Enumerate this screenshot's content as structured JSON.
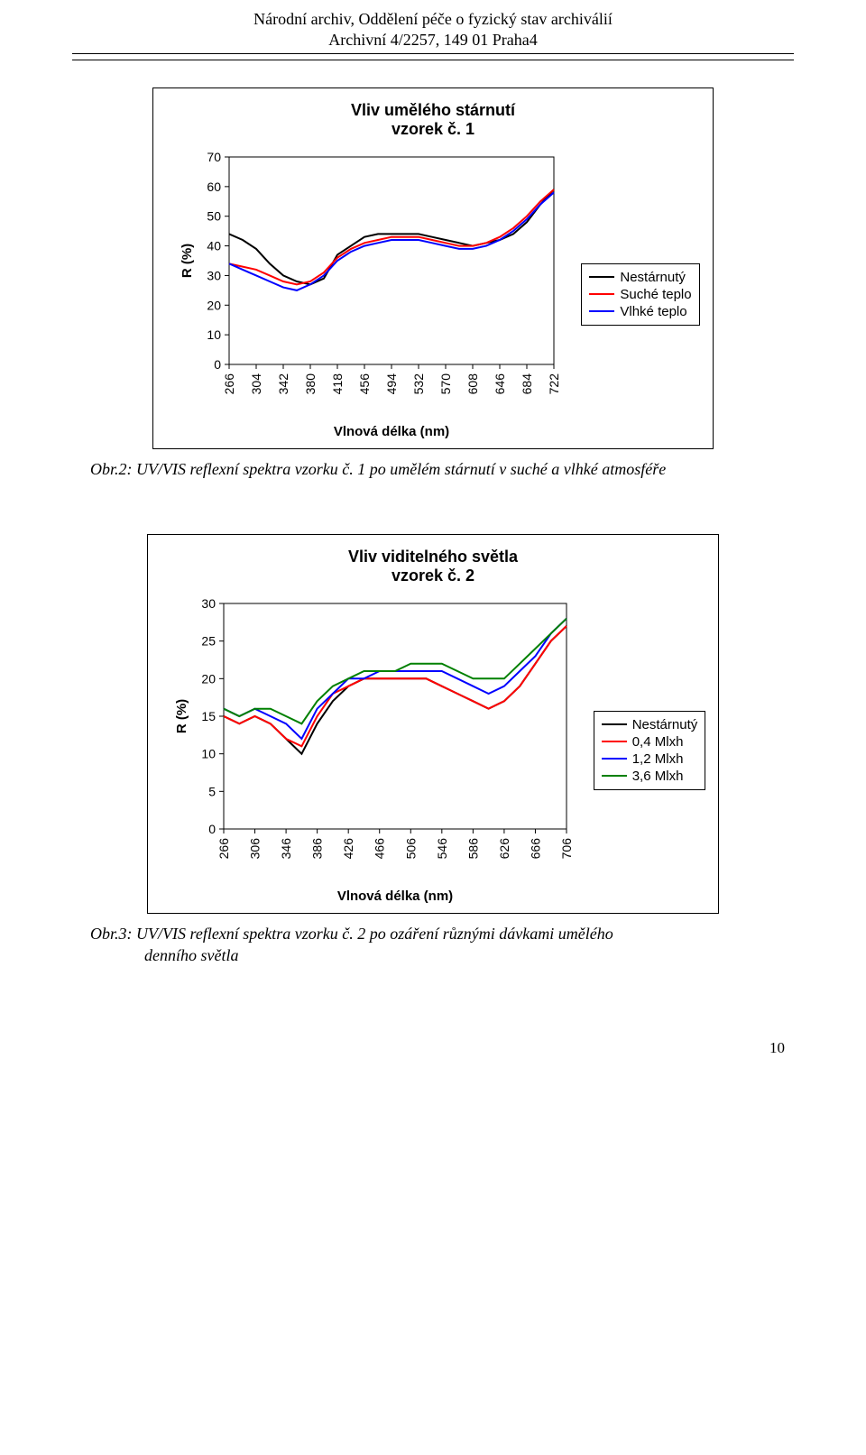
{
  "header": {
    "line1": "Národní archiv, Oddělení péče o fyzický stav archiválií",
    "line2": "Archivní 4/2257, 149 01 Praha4"
  },
  "chart1": {
    "type": "line",
    "title_line1": "Vliv umělého stárnutí",
    "title_line2": "vzorek č. 1",
    "title_fontsize": 18,
    "ylabel": "R (%)",
    "xlabel": "Vlnová délka (nm)",
    "label_fontsize": 15,
    "tick_fontsize": 14,
    "ylim": [
      0,
      70
    ],
    "ytick_step": 10,
    "yticks": [
      0,
      10,
      20,
      30,
      40,
      50,
      60,
      70
    ],
    "xticks": [
      266,
      304,
      342,
      380,
      418,
      456,
      494,
      532,
      570,
      608,
      646,
      684,
      722
    ],
    "xtick_rotation": -90,
    "background_color": "#ffffff",
    "grid_color": "#c0c0c0",
    "grid": false,
    "axis_color": "#000000",
    "line_width": 2,
    "legend_border_color": "#000000",
    "legend_fontsize": 15,
    "series": [
      {
        "name": "Nestárnutý",
        "color": "#000000",
        "x": [
          266,
          285,
          304,
          323,
          342,
          361,
          380,
          399,
          418,
          437,
          456,
          475,
          494,
          513,
          532,
          551,
          570,
          589,
          608,
          627,
          646,
          665,
          684,
          703,
          722
        ],
        "y": [
          44,
          42,
          39,
          34,
          30,
          28,
          27,
          29,
          37,
          40,
          43,
          44,
          44,
          44,
          44,
          43,
          42,
          41,
          40,
          41,
          42,
          44,
          48,
          54,
          59
        ]
      },
      {
        "name": "Suché teplo",
        "color": "#ff0000",
        "x": [
          266,
          285,
          304,
          323,
          342,
          361,
          380,
          399,
          418,
          437,
          456,
          475,
          494,
          513,
          532,
          551,
          570,
          589,
          608,
          627,
          646,
          665,
          684,
          703,
          722
        ],
        "y": [
          34,
          33,
          32,
          30,
          28,
          27,
          28,
          31,
          36,
          39,
          41,
          42,
          43,
          43,
          43,
          42,
          41,
          40,
          40,
          41,
          43,
          46,
          50,
          55,
          59
        ]
      },
      {
        "name": "Vlhké teplo",
        "color": "#0000ff",
        "x": [
          266,
          285,
          304,
          323,
          342,
          361,
          380,
          399,
          418,
          437,
          456,
          475,
          494,
          513,
          532,
          551,
          570,
          589,
          608,
          627,
          646,
          665,
          684,
          703,
          722
        ],
        "y": [
          34,
          32,
          30,
          28,
          26,
          25,
          27,
          30,
          35,
          38,
          40,
          41,
          42,
          42,
          42,
          41,
          40,
          39,
          39,
          40,
          42,
          45,
          49,
          54,
          58
        ]
      }
    ]
  },
  "caption1": "Obr.2: UV/VIS reflexní spektra vzorku č. 1 po umělém stárnutí v suché a vlhké atmosféře",
  "chart2": {
    "type": "line",
    "title_line1": "Vliv viditelného světla",
    "title_line2": "vzorek č. 2",
    "title_fontsize": 18,
    "ylabel": "R (%)",
    "xlabel": "Vlnová délka (nm)",
    "label_fontsize": 15,
    "tick_fontsize": 14,
    "ylim": [
      0,
      30
    ],
    "ytick_step": 5,
    "yticks": [
      0,
      5,
      10,
      15,
      20,
      25,
      30
    ],
    "xticks": [
      266,
      306,
      346,
      386,
      426,
      466,
      506,
      546,
      586,
      626,
      666,
      706
    ],
    "xtick_rotation": -90,
    "background_color": "#ffffff",
    "grid_color": "#c0c0c0",
    "grid": false,
    "axis_color": "#000000",
    "line_width": 2,
    "legend_border_color": "#000000",
    "legend_fontsize": 15,
    "series": [
      {
        "name": "Nestárnutý",
        "color": "#000000",
        "x": [
          266,
          286,
          306,
          326,
          346,
          366,
          386,
          406,
          426,
          446,
          466,
          486,
          506,
          526,
          546,
          566,
          586,
          606,
          626,
          646,
          666,
          686,
          706
        ],
        "y": [
          15,
          14,
          15,
          14,
          12,
          10,
          14,
          17,
          19,
          20,
          20,
          20,
          20,
          20,
          19,
          18,
          17,
          16,
          17,
          19,
          22,
          25,
          27
        ]
      },
      {
        "name": "0,4 Mlxh",
        "color": "#ff0000",
        "x": [
          266,
          286,
          306,
          326,
          346,
          366,
          386,
          406,
          426,
          446,
          466,
          486,
          506,
          526,
          546,
          566,
          586,
          606,
          626,
          646,
          666,
          686,
          706
        ],
        "y": [
          15,
          14,
          15,
          14,
          12,
          11,
          15,
          18,
          19,
          20,
          20,
          20,
          20,
          20,
          19,
          18,
          17,
          16,
          17,
          19,
          22,
          25,
          27
        ]
      },
      {
        "name": "1,2 Mlxh",
        "color": "#0000ff",
        "x": [
          266,
          286,
          306,
          326,
          346,
          366,
          386,
          406,
          426,
          446,
          466,
          486,
          506,
          526,
          546,
          566,
          586,
          606,
          626,
          646,
          666,
          686,
          706
        ],
        "y": [
          16,
          15,
          16,
          15,
          14,
          12,
          16,
          18,
          20,
          20,
          21,
          21,
          21,
          21,
          21,
          20,
          19,
          18,
          19,
          21,
          23,
          26,
          28
        ]
      },
      {
        "name": "3,6 Mlxh",
        "color": "#008000",
        "x": [
          266,
          286,
          306,
          326,
          346,
          366,
          386,
          406,
          426,
          446,
          466,
          486,
          506,
          526,
          546,
          566,
          586,
          606,
          626,
          646,
          666,
          686,
          706
        ],
        "y": [
          16,
          15,
          16,
          16,
          15,
          14,
          17,
          19,
          20,
          21,
          21,
          21,
          22,
          22,
          22,
          21,
          20,
          20,
          20,
          22,
          24,
          26,
          28
        ]
      }
    ]
  },
  "caption2_line1": "Obr.3: UV/VIS reflexní spektra vzorku č. 2 po ozáření různými dávkami umělého",
  "caption2_line2": "denního světla",
  "page_number": "10"
}
